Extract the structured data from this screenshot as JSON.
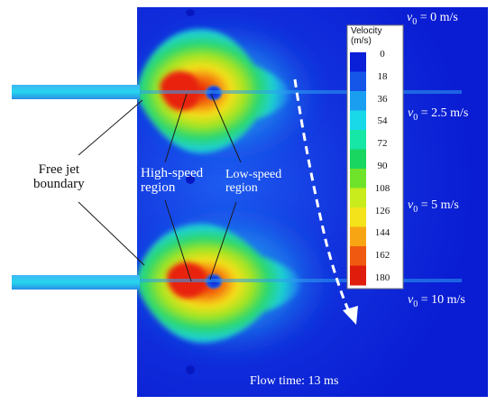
{
  "labels": {
    "free_jet": [
      "Free jet",
      "boundary"
    ],
    "high_speed": [
      "High-speed",
      "region"
    ],
    "low_speed": [
      "Low-speed",
      "region"
    ],
    "flow_time": "Flow time: 13 ms"
  },
  "conditions": [
    {
      "symbol": "v",
      "subscript": "0",
      "rest": " = 0 m/s"
    },
    {
      "symbol": "v",
      "subscript": "0",
      "rest": " = 2.5 m/s"
    },
    {
      "symbol": "v",
      "subscript": "0",
      "rest": " = 5 m/s"
    },
    {
      "symbol": "v",
      "subscript": "0",
      "rest": " = 10 m/s"
    }
  ],
  "legend": {
    "title": [
      "Velocity",
      "(m/s)"
    ],
    "ticks": [
      "0",
      "18",
      "36",
      "54",
      "72",
      "90",
      "108",
      "126",
      "144",
      "162",
      "180"
    ],
    "colors": [
      "#0a1fd8",
      "#1556e8",
      "#1a9ef0",
      "#19d8e8",
      "#16e6a6",
      "#18d660",
      "#6fe22a",
      "#c8ec1c",
      "#f4e31a",
      "#f8a514",
      "#f05a10",
      "#e01c0c"
    ]
  },
  "colors": {
    "field_background": "#0b1ed6",
    "arrow": "#ffffff"
  }
}
